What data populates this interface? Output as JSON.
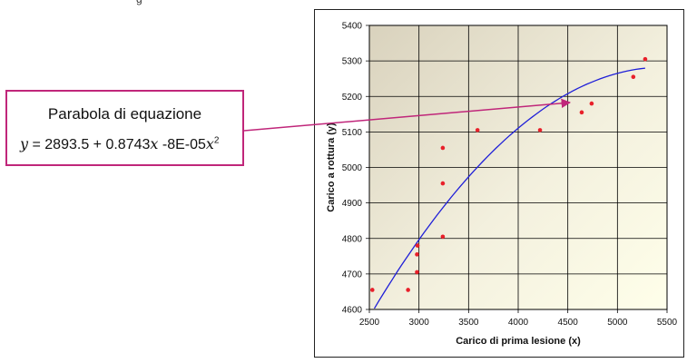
{
  "top_fragment": "g",
  "formula": {
    "title": "Parabola di equazione",
    "y_var": "y",
    "equals": " = ",
    "constant": "2893.5",
    "plus": " + ",
    "linear_coef": "0.8743",
    "x_var": "x",
    "quad_term": "  -8E-05",
    "x_var2": "x",
    "exponent": "2"
  },
  "colors": {
    "points": "#e8202a",
    "curve": "#1f1fd8",
    "arrow": "#c0267a",
    "grid": "#000000"
  },
  "chart_data": {
    "type": "scatter",
    "xlabel": "Carico di prima lesione (x)",
    "ylabel": "Carico a rottura (y)",
    "xlim": [
      2500,
      5500
    ],
    "ylim": [
      4600,
      5400
    ],
    "x_ticks": [
      2500,
      3000,
      3500,
      4000,
      4500,
      5000,
      5500
    ],
    "y_ticks": [
      4600,
      4700,
      4800,
      4900,
      5000,
      5100,
      5200,
      5300,
      5400
    ],
    "grid": true,
    "points": [
      {
        "x": 2530,
        "y": 4655
      },
      {
        "x": 2890,
        "y": 4655
      },
      {
        "x": 2980,
        "y": 4705
      },
      {
        "x": 2980,
        "y": 4755
      },
      {
        "x": 2985,
        "y": 4780
      },
      {
        "x": 3240,
        "y": 4805
      },
      {
        "x": 3240,
        "y": 4955
      },
      {
        "x": 3240,
        "y": 5055
      },
      {
        "x": 3590,
        "y": 5105
      },
      {
        "x": 4220,
        "y": 5105
      },
      {
        "x": 4640,
        "y": 5155
      },
      {
        "x": 4740,
        "y": 5180
      },
      {
        "x": 5160,
        "y": 5255
      },
      {
        "x": 5280,
        "y": 5305
      }
    ],
    "fit": {
      "type": "quadratic",
      "a": 2893.5,
      "b": 0.8743,
      "c": -8e-05,
      "x_from": 2550,
      "x_to": 5280
    }
  }
}
